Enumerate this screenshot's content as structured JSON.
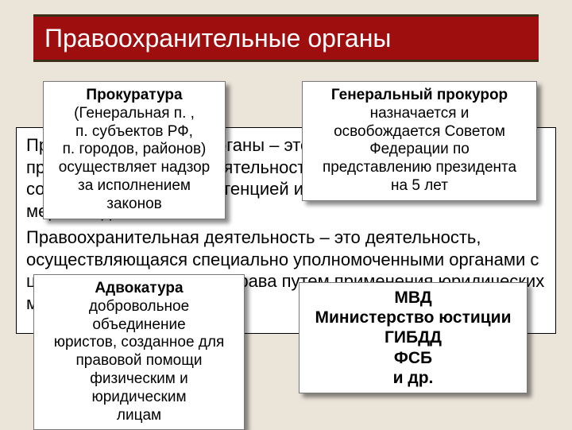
{
  "colors": {
    "page_bg": "#eae4d9",
    "title_bg": "#9f0e0e",
    "title_border": "#3b2e16",
    "title_text": "#ffffff",
    "card_bg": "#ffffff",
    "card_border": "#777777",
    "card_shadow": "rgba(0,0,0,0.45)",
    "body_text": "#000000"
  },
  "title": "Правоохранительные органы",
  "background_paragraphs": [
    "Правоохранительные органы – это органы, осуществляющие правоохранительную деятельность, обладающие соответствующей компетенцией и несущие соответствующие меры воздействия.",
    "Правоохранительная деятельность – это деятельность, осуществляющаяся специально уполномоченными органами с целью охраны и защиты права путем применения юридических мер воздействия."
  ],
  "cards": {
    "prokuratura": {
      "head": "Прокуратура",
      "lines": [
        "(Генеральная п. ,",
        "п. субъектов РФ,",
        "п. городов, районов)",
        "осуществляет надзор",
        "за исполнением",
        "законов"
      ]
    },
    "prokuror": {
      "head": "Генеральный прокурор",
      "lines": [
        "назначается и",
        "освобождается Советом",
        "Федерации по",
        "представлению президента",
        "на 5 лет"
      ]
    },
    "advokatura": {
      "head": "Адвокатура",
      "lines": [
        "добровольное объединение",
        "юристов, созданное для",
        "правовой помощи",
        "физическим и юридическим",
        "лицам"
      ]
    },
    "mvd": {
      "lines": [
        "МВД",
        "Министерство юстиции",
        "ГИБДД",
        "ФСБ",
        "и др."
      ]
    }
  }
}
